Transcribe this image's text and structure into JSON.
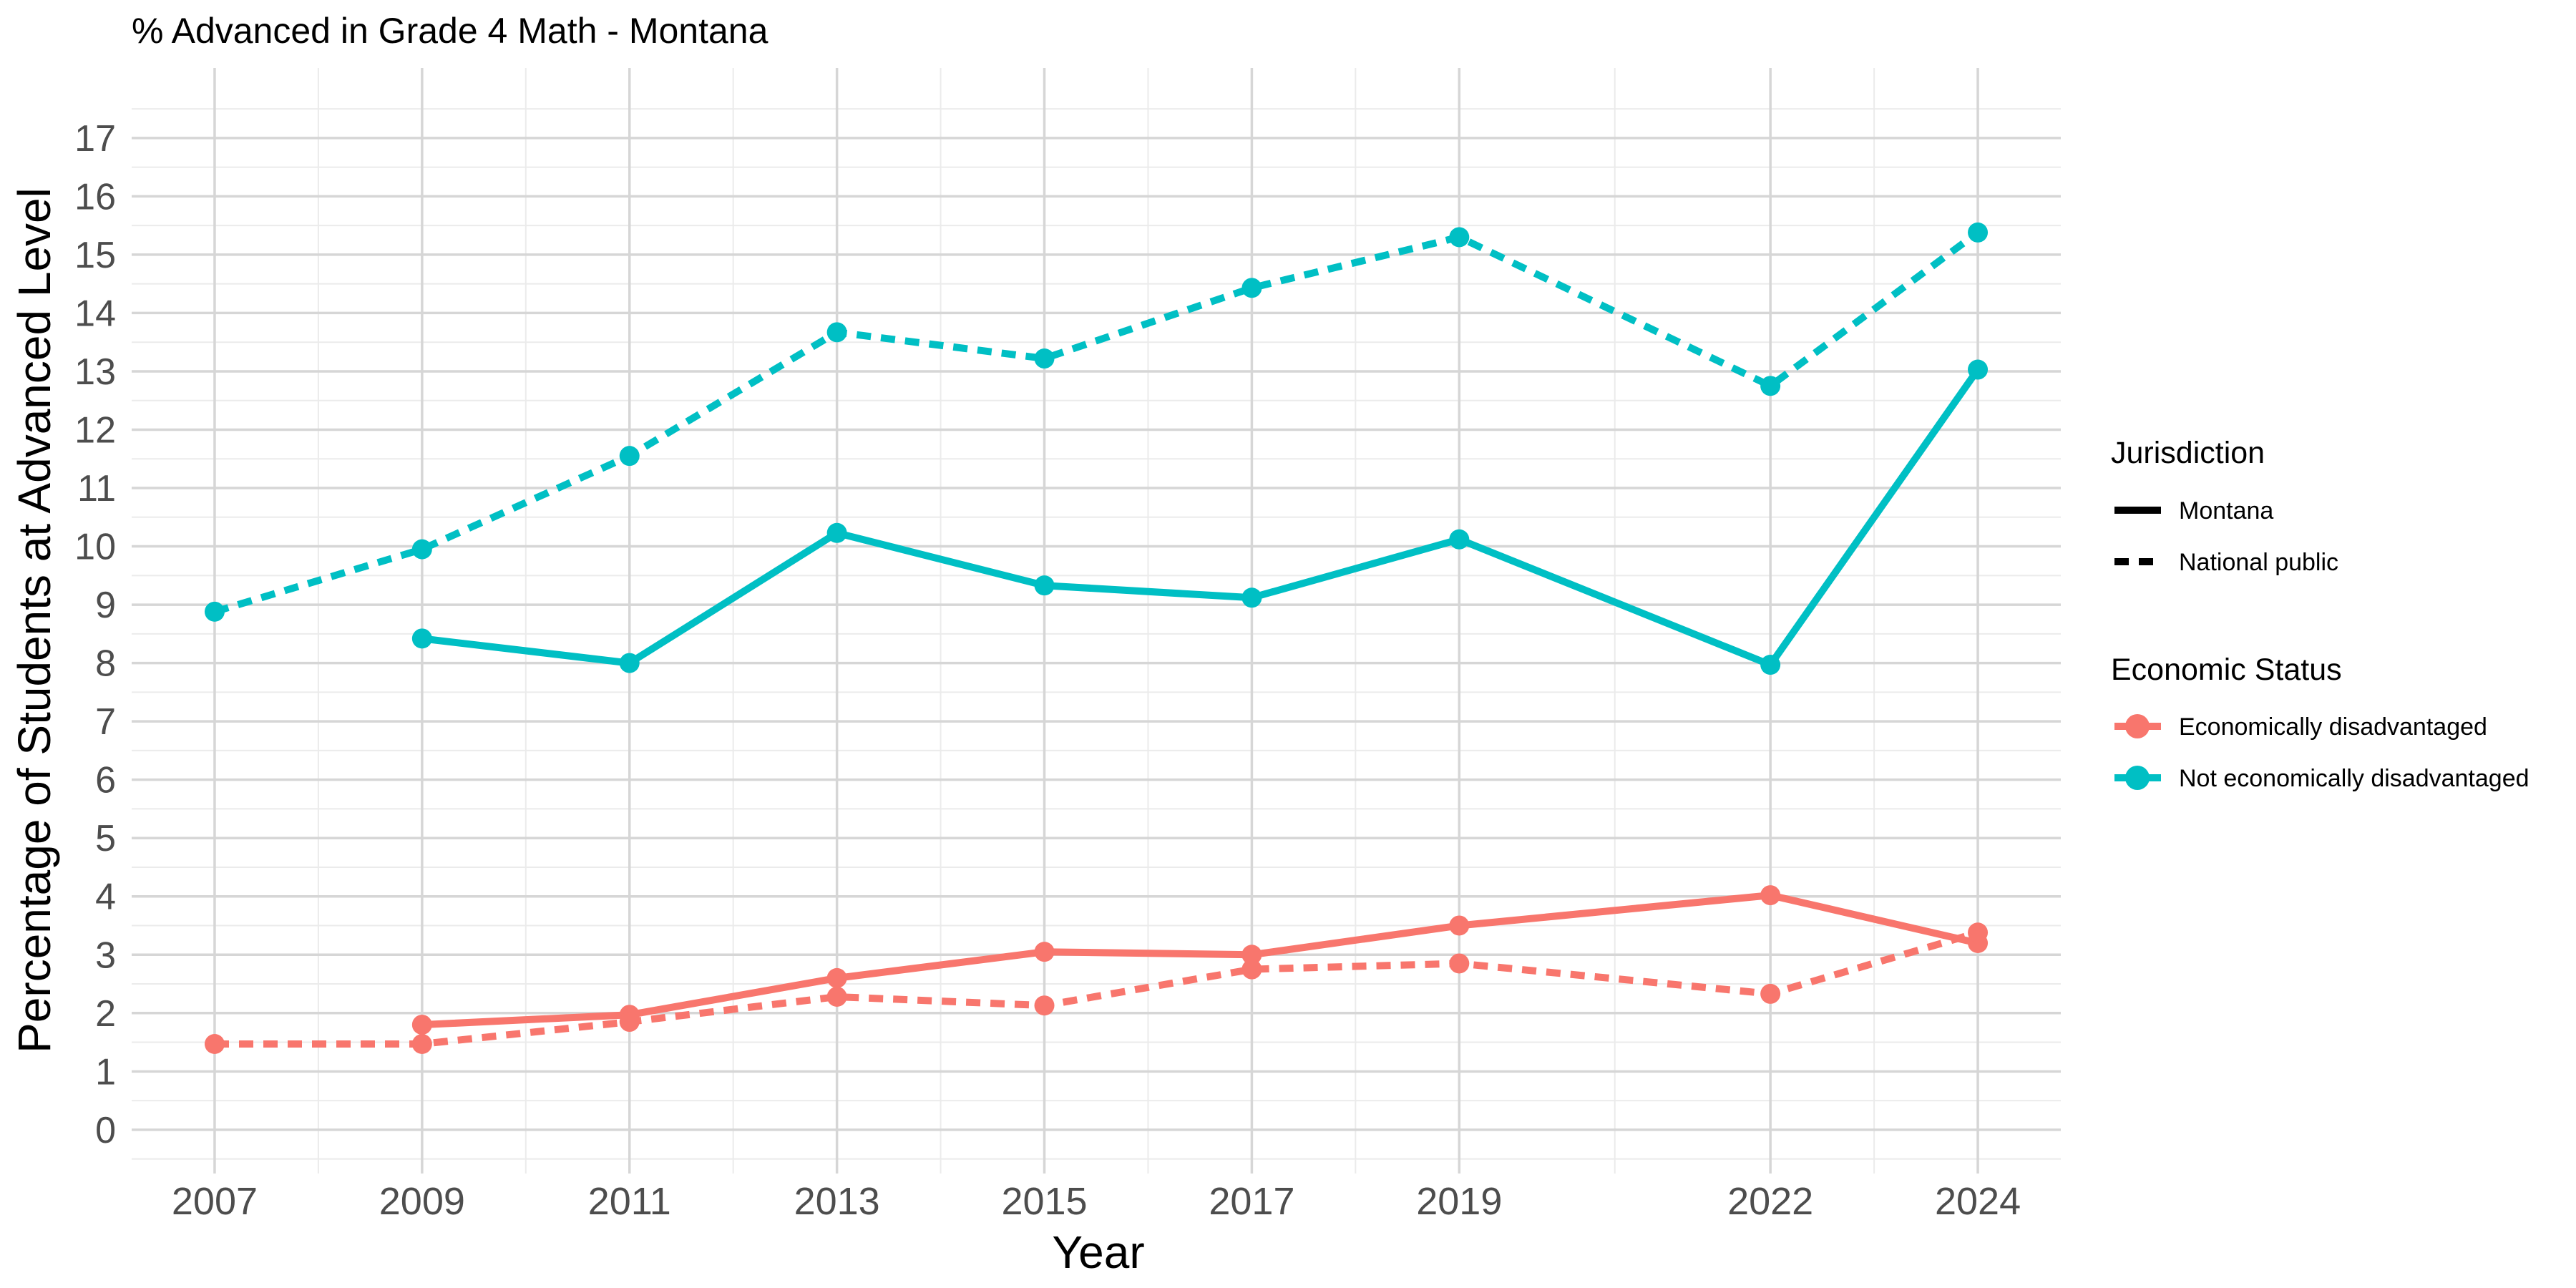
{
  "chart_data": {
    "type": "line",
    "title": "% Advanced in Grade 4 Math - Montana",
    "xlabel": "Year",
    "ylabel": "Percentage of Students at Advanced Level",
    "x_ticks": [
      2007,
      2009,
      2011,
      2013,
      2015,
      2017,
      2019,
      2022,
      2024
    ],
    "xlim": [
      2006.2,
      2024.8
    ],
    "y_ticks": [
      0,
      1,
      2,
      3,
      4,
      5,
      6,
      7,
      8,
      9,
      10,
      11,
      12,
      13,
      14,
      15,
      16,
      17
    ],
    "ylim": [
      -0.75,
      18.2
    ],
    "grid": true,
    "legend_position": "right",
    "legends": [
      {
        "title": "Jurisdiction",
        "entries": [
          {
            "label": "Montana",
            "linetype": "solid"
          },
          {
            "label": "National public",
            "linetype": "dashed"
          }
        ]
      },
      {
        "title": "Economic Status",
        "entries": [
          {
            "label": "Economically disadvantaged",
            "color": "#F8766D"
          },
          {
            "label": "Not economically disadvantaged",
            "color": "#00BFC4"
          }
        ]
      }
    ],
    "series": [
      {
        "jurisdiction": "Montana",
        "status": "Economically disadvantaged",
        "color": "#F8766D",
        "linetype": "solid",
        "x": [
          2009,
          2011,
          2013,
          2015,
          2017,
          2019,
          2022,
          2024
        ],
        "values": [
          1.8,
          1.97,
          2.6,
          3.05,
          3.0,
          3.5,
          4.02,
          3.2
        ]
      },
      {
        "jurisdiction": "National public",
        "status": "Economically disadvantaged",
        "color": "#F8766D",
        "linetype": "dashed",
        "x": [
          2007,
          2009,
          2011,
          2013,
          2015,
          2017,
          2019,
          2022,
          2024
        ],
        "values": [
          1.47,
          1.47,
          1.85,
          2.28,
          2.13,
          2.75,
          2.85,
          2.33,
          3.38
        ]
      },
      {
        "jurisdiction": "Montana",
        "status": "Not economically disadvantaged",
        "color": "#00BFC4",
        "linetype": "solid",
        "x": [
          2009,
          2011,
          2013,
          2015,
          2017,
          2019,
          2022,
          2024
        ],
        "values": [
          8.42,
          8.0,
          10.23,
          9.33,
          9.12,
          10.12,
          7.97,
          13.03
        ]
      },
      {
        "jurisdiction": "National public",
        "status": "Not economically disadvantaged",
        "color": "#00BFC4",
        "linetype": "dashed",
        "x": [
          2007,
          2009,
          2011,
          2013,
          2015,
          2017,
          2019,
          2022,
          2024
        ],
        "values": [
          8.88,
          9.95,
          11.55,
          13.67,
          13.22,
          14.43,
          15.3,
          12.75,
          15.38
        ]
      }
    ]
  }
}
